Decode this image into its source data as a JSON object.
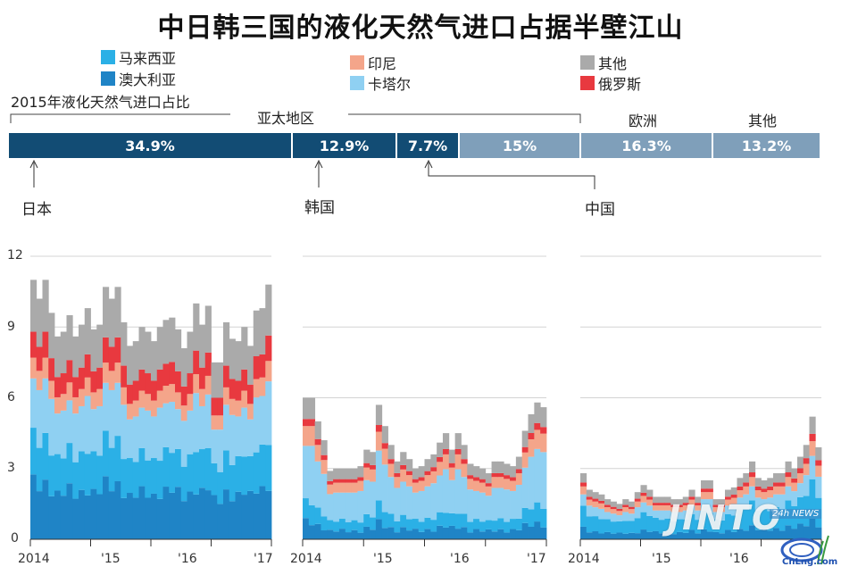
{
  "title": "中日韩三国的液化天然气进口占据半壁江山",
  "legend": [
    {
      "label": "马来西亚",
      "color": "#2bb0e6"
    },
    {
      "label": "澳大利亚",
      "color": "#1f84c6"
    },
    {
      "label": "印尼",
      "color": "#f4a58a"
    },
    {
      "label": "卡塔尔",
      "color": "#8fd0f2"
    },
    {
      "label": "其他",
      "color": "#aaaaaa"
    },
    {
      "label": "俄罗斯",
      "color": "#e8393f"
    }
  ],
  "share_title": "2015年液化天然气进口占比",
  "region_labels": {
    "asia": "亚太地区",
    "europe": "欧洲",
    "other": "其他"
  },
  "share_bar": [
    {
      "label": "34.9%",
      "value": 34.9,
      "color": "#124c74"
    },
    {
      "label": "12.9%",
      "value": 12.9,
      "color": "#124c74"
    },
    {
      "label": "7.7%",
      "value": 7.7,
      "color": "#124c74"
    },
    {
      "label": "15%",
      "value": 15.0,
      "color": "#7f9fba"
    },
    {
      "label": "16.3%",
      "value": 16.3,
      "color": "#7f9fba"
    },
    {
      "label": "13.2%",
      "value": 13.2,
      "color": "#7f9fba"
    }
  ],
  "countries": {
    "japan": "日本",
    "korea": "韩国",
    "china": "中国"
  },
  "watermark": {
    "text": "JINTO",
    "badge": "24h NEWS",
    "site": "CnLng.com"
  },
  "chart_data": [
    {
      "type": "area",
      "panel": "japan",
      "ylim": [
        0,
        12
      ],
      "yticks": [
        "0",
        "3",
        "6",
        "9",
        "12"
      ],
      "xticks": [
        "2014",
        "'15",
        "'16",
        "'17"
      ],
      "stack_order": [
        "澳大利亚",
        "马来西亚",
        "卡塔尔",
        "印尼",
        "俄罗斯",
        "其他"
      ],
      "totals": [
        11.0,
        10.2,
        11.0,
        9.6,
        8.6,
        8.8,
        9.5,
        8.6,
        9.1,
        9.8,
        8.9,
        9.1,
        10.7,
        10.2,
        10.7,
        9.2,
        8.2,
        8.4,
        9.0,
        8.8,
        8.4,
        9.0,
        9.3,
        9.4,
        8.9,
        8.1,
        8.8,
        10.0,
        9.1,
        9.9,
        7.5,
        7.5,
        9.2,
        8.5,
        8.4,
        9.0,
        8.2,
        9.7,
        9.8,
        10.8
      ]
    },
    {
      "type": "area",
      "panel": "korea",
      "ylim": [
        0,
        12
      ],
      "xticks": [
        "2014",
        "'15",
        "'16",
        "'17"
      ],
      "stack_order": [
        "澳大利亚",
        "马来西亚",
        "卡塔尔",
        "印尼",
        "俄罗斯",
        "其他"
      ],
      "totals": [
        6.0,
        6.0,
        5.0,
        4.2,
        2.9,
        3.0,
        3.0,
        3.0,
        3.0,
        3.1,
        3.8,
        3.7,
        5.7,
        4.8,
        4.0,
        3.3,
        3.7,
        3.4,
        3.0,
        3.1,
        3.4,
        3.6,
        4.1,
        4.5,
        3.8,
        4.5,
        4.0,
        3.2,
        3.1,
        3.0,
        2.8,
        3.3,
        3.3,
        3.2,
        3.1,
        3.5,
        4.6,
        5.3,
        5.8,
        5.6
      ]
    },
    {
      "type": "area",
      "panel": "china",
      "ylim": [
        0,
        12
      ],
      "xticks": [
        "2014",
        "'15",
        "'16",
        "'17"
      ],
      "stack_order": [
        "澳大利亚",
        "马来西亚",
        "卡塔尔",
        "印尼",
        "俄罗斯",
        "其他"
      ],
      "totals": [
        2.8,
        2.1,
        2.0,
        1.9,
        1.7,
        1.6,
        1.5,
        1.7,
        1.6,
        2.0,
        2.3,
        2.1,
        1.8,
        1.8,
        1.8,
        1.7,
        1.7,
        1.8,
        2.1,
        1.8,
        2.5,
        2.5,
        1.7,
        1.7,
        2.1,
        2.2,
        2.6,
        2.8,
        3.3,
        2.6,
        2.5,
        2.6,
        2.8,
        2.8,
        3.3,
        3.0,
        3.5,
        4.0,
        5.2,
        3.9
      ]
    }
  ]
}
